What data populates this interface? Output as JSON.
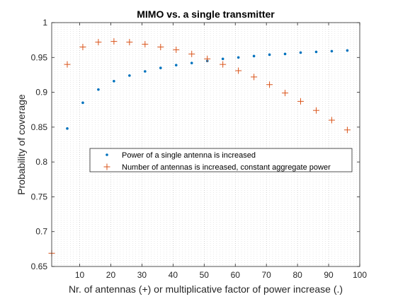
{
  "chart_data": {
    "type": "scatter",
    "title": "MIMO vs. a single transmitter",
    "xlabel": "Nr. of antennas (+) or multiplicative factor of power increase (.)",
    "ylabel": "Probability of coverage",
    "xlim": [
      1,
      100
    ],
    "ylim": [
      0.65,
      1
    ],
    "xticks": [
      10,
      20,
      30,
      40,
      50,
      60,
      70,
      80,
      90,
      100
    ],
    "yticks": [
      0.65,
      0.7,
      0.75,
      0.8,
      0.85,
      0.9,
      0.95,
      1
    ],
    "ytick_labels": [
      "0.65",
      "0.7",
      "0.75",
      "0.8",
      "0.85",
      "0.9",
      "0.95",
      "1"
    ],
    "xtick_labels": [
      "10",
      "20",
      "30",
      "40",
      "50",
      "60",
      "70",
      "80",
      "90",
      "100"
    ],
    "grid": "vertical dotted",
    "legend_position": "center",
    "series": [
      {
        "name": "Power of a single antenna is increased",
        "marker": "dot",
        "color": "#0072bd",
        "x": [
          6,
          11,
          16,
          21,
          26,
          31,
          36,
          41,
          46,
          51,
          56,
          61,
          66,
          71,
          76,
          81,
          86,
          91,
          96
        ],
        "y": [
          0.848,
          0.885,
          0.904,
          0.916,
          0.924,
          0.93,
          0.935,
          0.939,
          0.942,
          0.945,
          0.948,
          0.95,
          0.952,
          0.954,
          0.955,
          0.957,
          0.958,
          0.959,
          0.96
        ]
      },
      {
        "name": "Number of antennas is increased, constant aggregate power",
        "marker": "plus",
        "color": "#d95319",
        "x": [
          1,
          6,
          11,
          16,
          21,
          26,
          31,
          36,
          41,
          46,
          51,
          56,
          61,
          66,
          71,
          76,
          81,
          86,
          91,
          96
        ],
        "y": [
          0.669,
          0.94,
          0.965,
          0.972,
          0.973,
          0.972,
          0.969,
          0.965,
          0.961,
          0.955,
          0.948,
          0.94,
          0.931,
          0.922,
          0.911,
          0.899,
          0.887,
          0.874,
          0.86,
          0.846
        ]
      }
    ]
  }
}
